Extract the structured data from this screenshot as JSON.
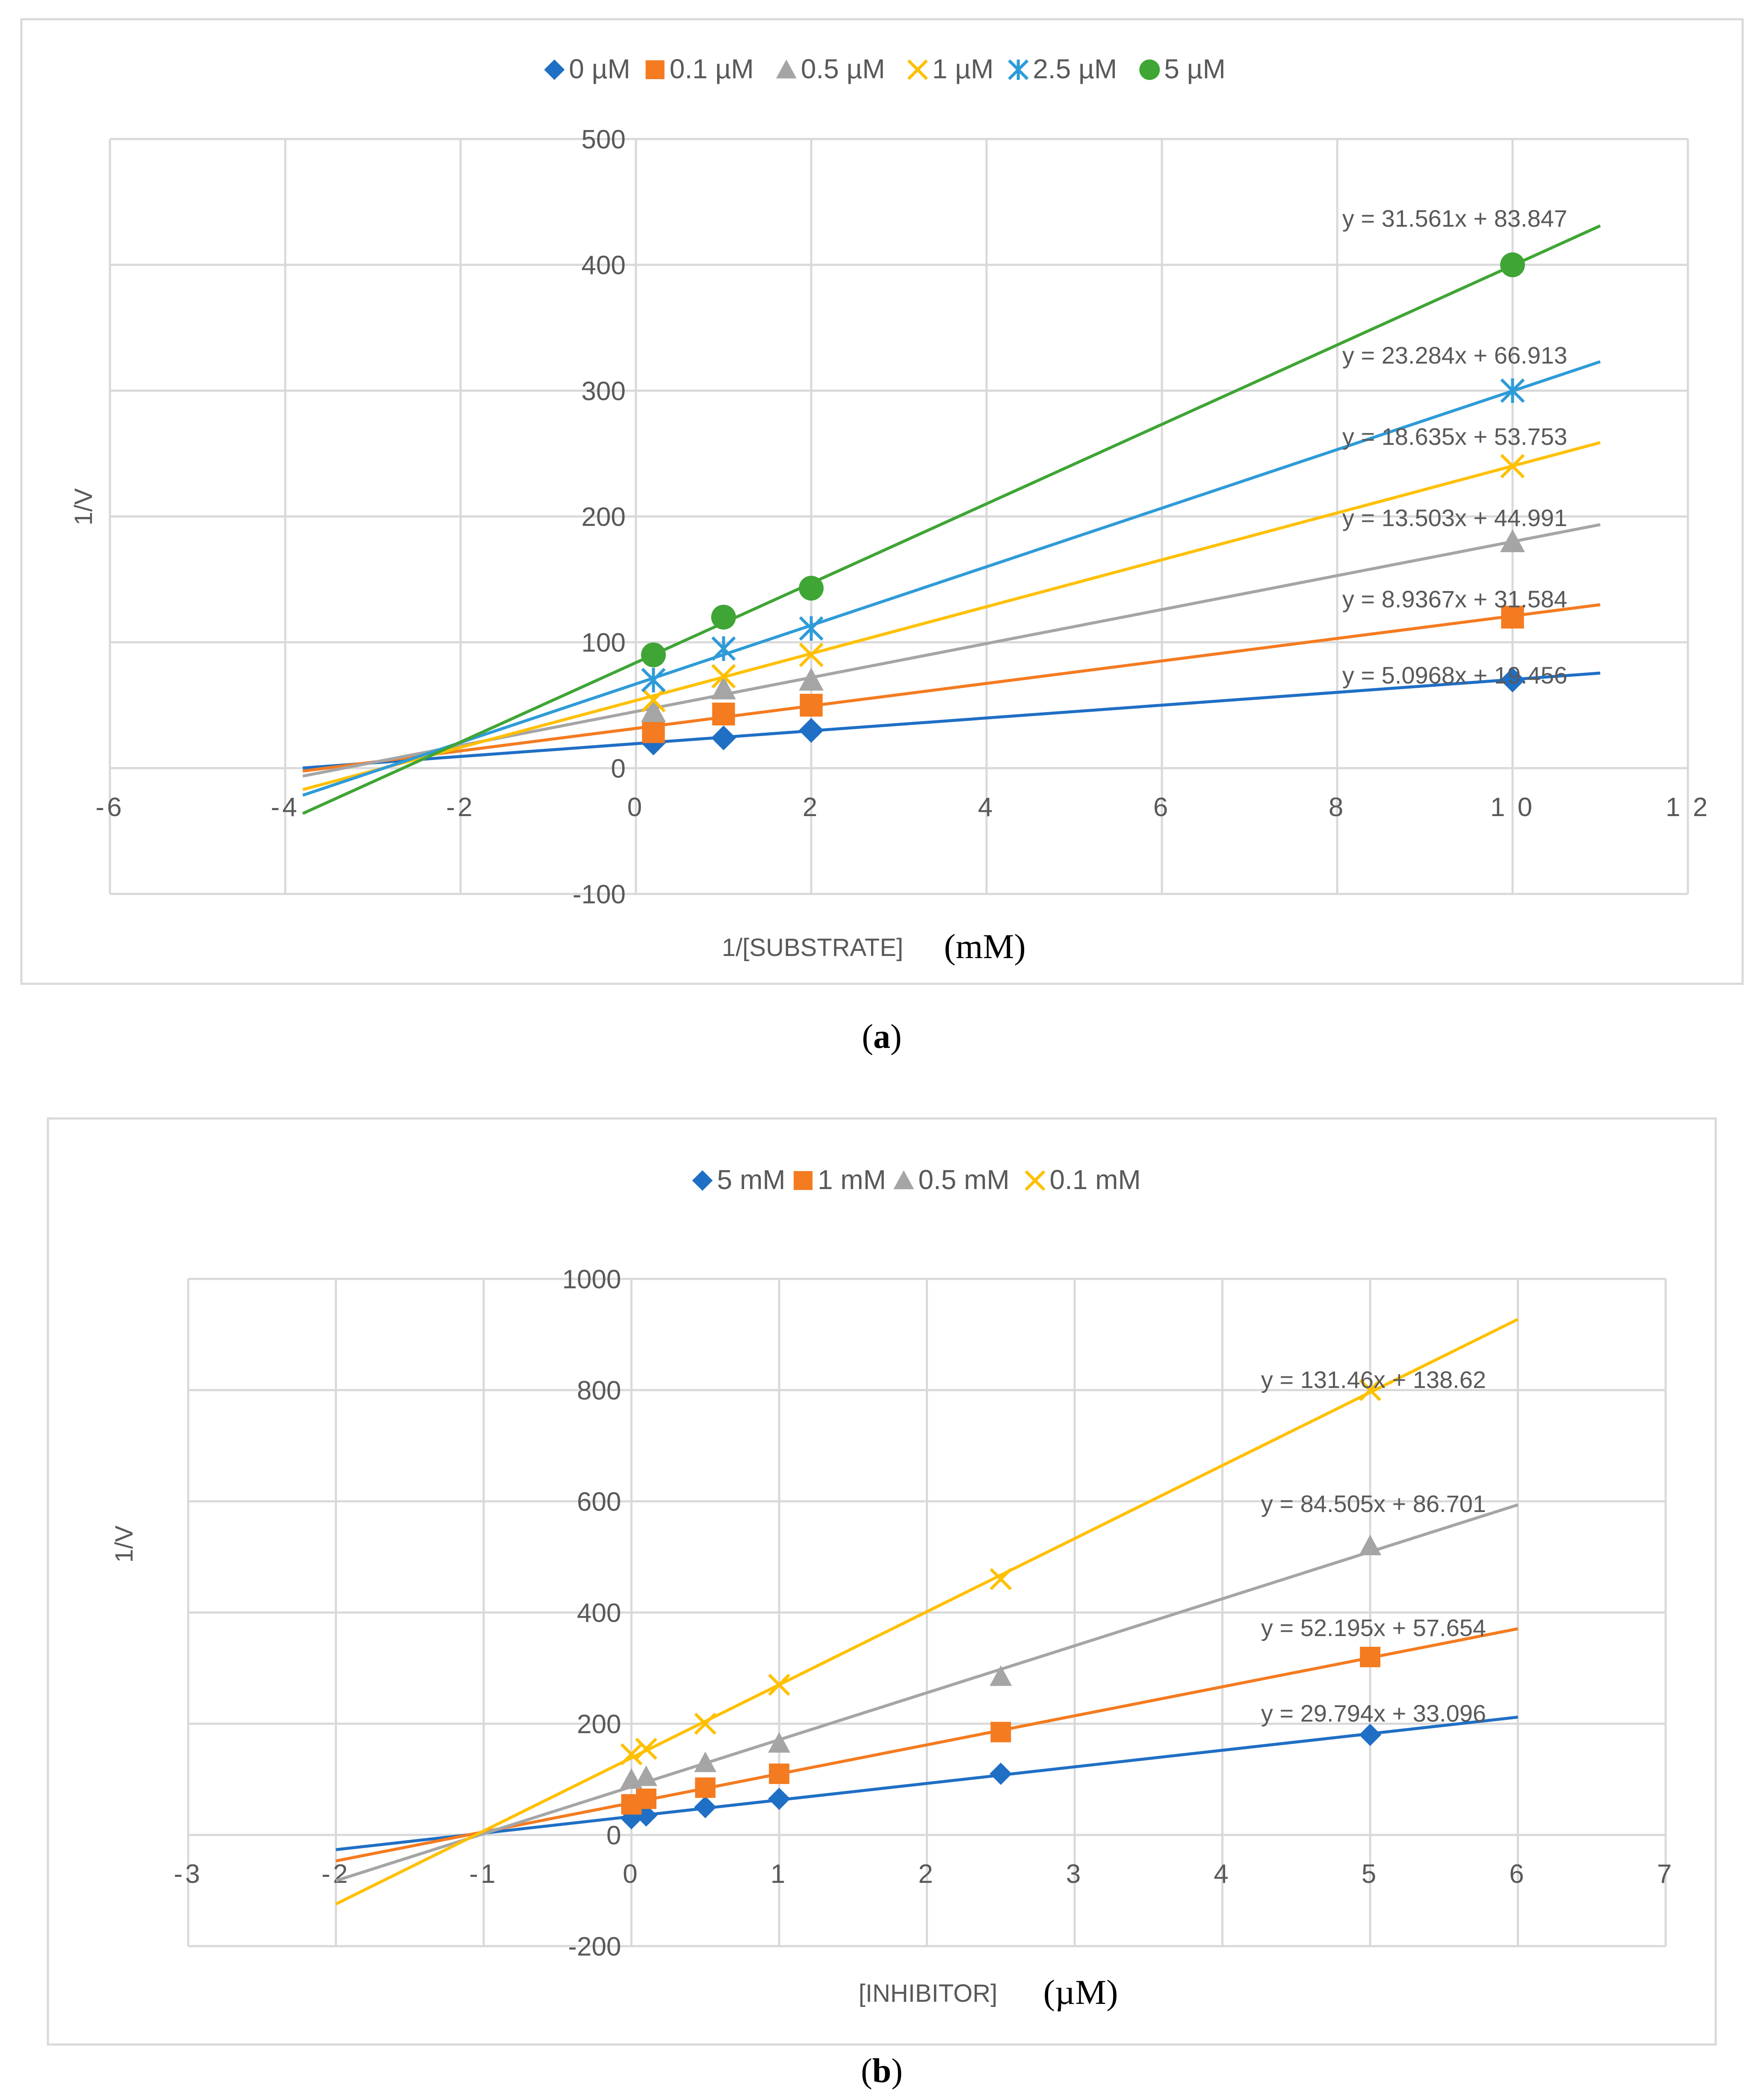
{
  "figure": {
    "panels": [
      {
        "caption": "a",
        "ylabel": "1/V",
        "xlabel": "1/[SUBSTRATE]",
        "xunit": "(mM)"
      },
      {
        "caption": "b",
        "ylabel": "1/V",
        "xlabel": "[INHIBITOR]",
        "xunit": "(µM)"
      }
    ]
  },
  "chart_data": [
    {
      "type": "scatter",
      "xlabel": "1/[SUBSTRATE]",
      "ylabel": "1/V",
      "xlim": [
        -6,
        12
      ],
      "ylim": [
        -100,
        500
      ],
      "xticks": [
        -6,
        -4,
        -2,
        0,
        2,
        4,
        6,
        8,
        10,
        12
      ],
      "yticks": [
        -100,
        0,
        100,
        200,
        300,
        400,
        500
      ],
      "grid": true,
      "legend_position": "top",
      "trendline_x_range": [
        -3.8,
        11
      ],
      "series": [
        {
          "name": "0 µM",
          "marker": "diamond",
          "color": "#1F6FC5",
          "x": [
            0.2,
            1,
            2,
            10
          ],
          "y": [
            20,
            24,
            30,
            70
          ],
          "slope": 5.0968,
          "intercept": 19.456,
          "equation": "y = 5.0968x + 19.456"
        },
        {
          "name": "0.1 µM",
          "marker": "square",
          "color": "#F47B20",
          "x": [
            0.2,
            1,
            2,
            10
          ],
          "y": [
            29,
            43,
            50,
            120
          ],
          "slope": 8.9367,
          "intercept": 31.584,
          "equation": "y = 8.9367x + 31.584"
        },
        {
          "name": "0.5 µM",
          "marker": "triangle",
          "color": "#A5A5A5",
          "x": [
            0.2,
            1,
            2,
            10
          ],
          "y": [
            45,
            63,
            70,
            180
          ],
          "slope": 13.503,
          "intercept": 44.991,
          "equation": "y = 13.503x + 44.991"
        },
        {
          "name": "1 µM",
          "marker": "x",
          "color": "#FFC000",
          "x": [
            0.2,
            1,
            2,
            10
          ],
          "y": [
            54,
            73,
            90,
            240
          ],
          "slope": 18.635,
          "intercept": 53.753,
          "equation": "y = 18.635x + 53.753"
        },
        {
          "name": "2.5 µM",
          "marker": "asterisk",
          "color": "#2E9BD8",
          "x": [
            0.2,
            1,
            2,
            10
          ],
          "y": [
            70,
            95,
            111,
            300
          ],
          "slope": 23.284,
          "intercept": 66.913,
          "equation": "y = 23.284x + 66.913"
        },
        {
          "name": "5 µM",
          "marker": "circle",
          "color": "#3FA535",
          "x": [
            0.2,
            1,
            2,
            10
          ],
          "y": [
            90,
            120,
            143,
            400
          ],
          "slope": 31.561,
          "intercept": 83.847,
          "equation": "y = 31.561x + 83.847"
        }
      ]
    },
    {
      "type": "scatter",
      "xlabel": "[INHIBITOR]",
      "ylabel": "1/V",
      "xlim": [
        -3,
        7
      ],
      "ylim": [
        -200,
        1000
      ],
      "xticks": [
        -3,
        -2,
        -1,
        0,
        1,
        2,
        3,
        4,
        5,
        6,
        7
      ],
      "yticks": [
        -200,
        0,
        200,
        400,
        600,
        800,
        1000
      ],
      "grid": true,
      "legend_position": "top",
      "trendline_x_range": [
        -2,
        6
      ],
      "series": [
        {
          "name": "5 mM",
          "marker": "diamond",
          "color": "#1F6FC5",
          "x": [
            0,
            0.1,
            0.5,
            1,
            2.5,
            5
          ],
          "y": [
            30,
            35,
            50,
            65,
            110,
            180
          ],
          "slope": 29.794,
          "intercept": 33.096,
          "equation": "y = 29.794x + 33.096"
        },
        {
          "name": "1 mM",
          "marker": "square",
          "color": "#F47B20",
          "x": [
            0,
            0.1,
            0.5,
            1,
            2.5,
            5
          ],
          "y": [
            55,
            65,
            85,
            110,
            185,
            320
          ],
          "slope": 52.195,
          "intercept": 57.654,
          "equation": "y = 52.195x + 57.654"
        },
        {
          "name": "0.5 mM",
          "marker": "triangle",
          "color": "#A5A5A5",
          "x": [
            0,
            0.1,
            0.5,
            1,
            2.5,
            5
          ],
          "y": [
            100,
            105,
            130,
            165,
            285,
            520
          ],
          "slope": 84.505,
          "intercept": 86.701,
          "equation": "y = 84.505x + 86.701"
        },
        {
          "name": "0.1 mM",
          "marker": "x",
          "color": "#FFC000",
          "x": [
            0,
            0.1,
            0.5,
            1,
            2.5,
            5
          ],
          "y": [
            145,
            155,
            200,
            270,
            460,
            800
          ],
          "slope": 131.46,
          "intercept": 138.62,
          "equation": "y = 131.46x + 138.62"
        }
      ]
    }
  ]
}
